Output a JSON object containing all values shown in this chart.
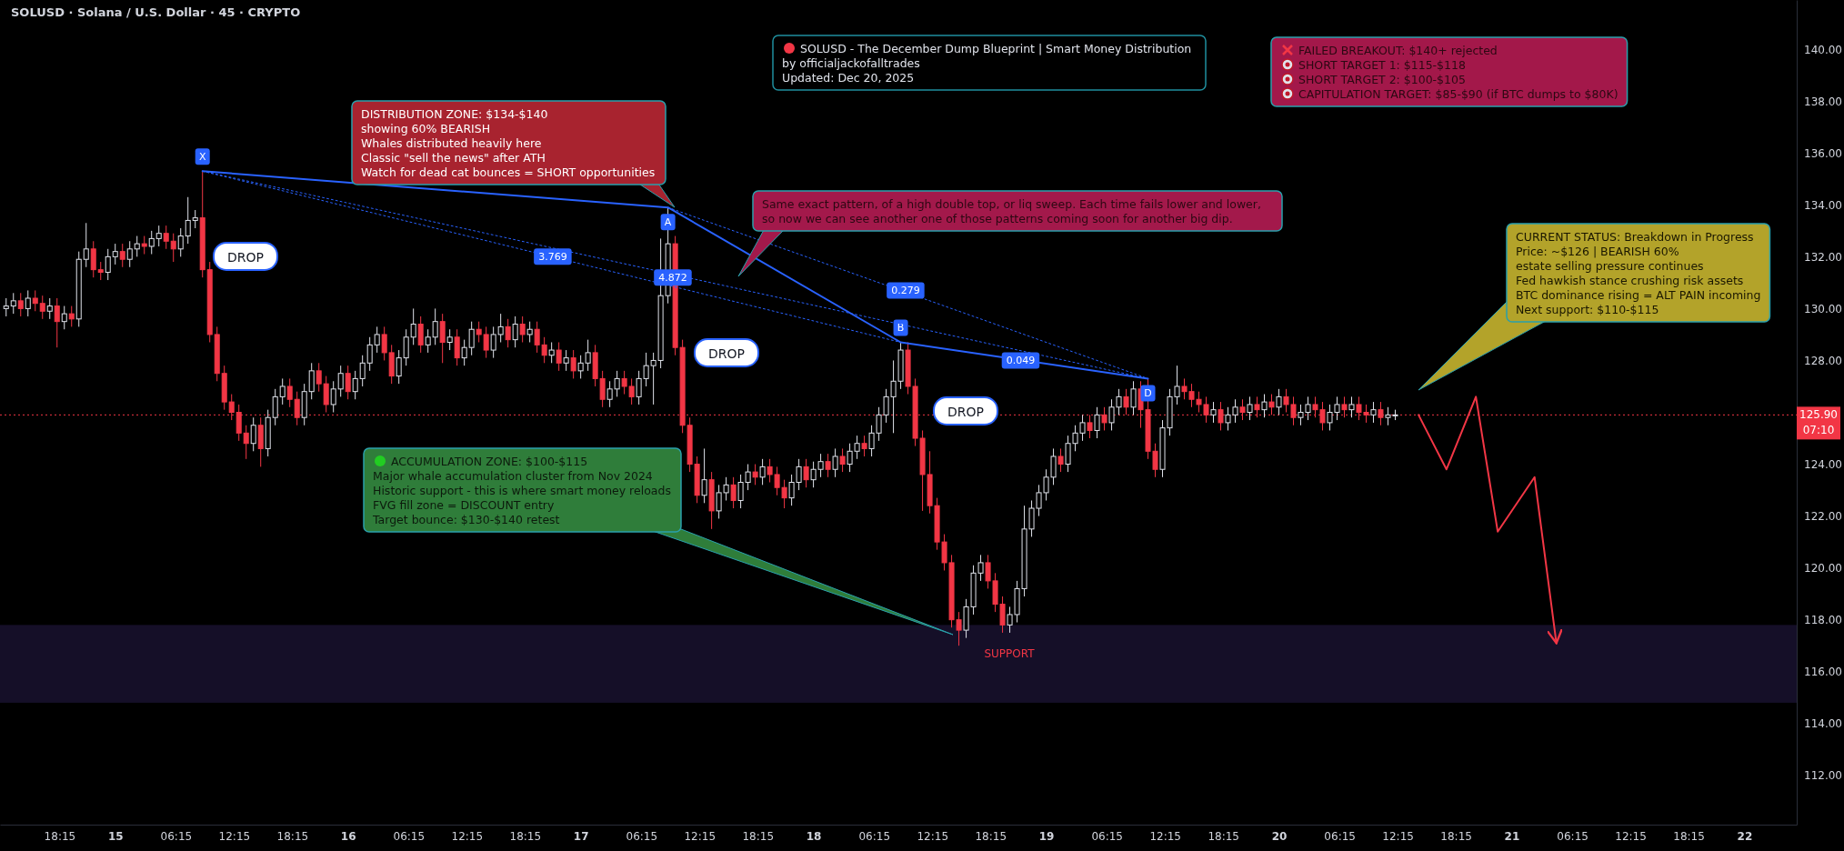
{
  "chart_data": {
    "type": "candlestick",
    "title": "SOLUSD · Solana / U.S. Dollar · 45 · CRYPTO",
    "xlim": [
      "2025-12-14T12:07",
      "2025-12-22T05:24"
    ],
    "ylim": [
      110.1,
      141.9
    ],
    "xticks": [
      {
        "value": "2025-12-14T18:15",
        "label": "18:15"
      },
      {
        "value": "2025-12-15T00:00",
        "label": "15"
      },
      {
        "value": "2025-12-15T06:15",
        "label": "06:15"
      },
      {
        "value": "2025-12-15T12:15",
        "label": "12:15"
      },
      {
        "value": "2025-12-15T18:15",
        "label": "18:15"
      },
      {
        "value": "2025-12-16T00:00",
        "label": "16"
      },
      {
        "value": "2025-12-16T06:15",
        "label": "06:15"
      },
      {
        "value": "2025-12-16T12:15",
        "label": "12:15"
      },
      {
        "value": "2025-12-16T18:15",
        "label": "18:15"
      },
      {
        "value": "2025-12-17T00:00",
        "label": "17"
      },
      {
        "value": "2025-12-17T06:15",
        "label": "06:15"
      },
      {
        "value": "2025-12-17T12:15",
        "label": "12:15"
      },
      {
        "value": "2025-12-17T18:15",
        "label": "18:15"
      },
      {
        "value": "2025-12-18T00:00",
        "label": "18"
      },
      {
        "value": "2025-12-18T06:15",
        "label": "06:15"
      },
      {
        "value": "2025-12-18T12:15",
        "label": "12:15"
      },
      {
        "value": "2025-12-18T18:15",
        "label": "18:15"
      },
      {
        "value": "2025-12-19T00:00",
        "label": "19"
      },
      {
        "value": "2025-12-19T06:15",
        "label": "06:15"
      },
      {
        "value": "2025-12-19T12:15",
        "label": "12:15"
      },
      {
        "value": "2025-12-19T18:15",
        "label": "18:15"
      },
      {
        "value": "2025-12-20T00:00",
        "label": "20"
      },
      {
        "value": "2025-12-20T06:15",
        "label": "06:15"
      },
      {
        "value": "2025-12-20T12:15",
        "label": "12:15"
      },
      {
        "value": "2025-12-20T18:15",
        "label": "18:15"
      },
      {
        "value": "2025-12-21T00:00",
        "label": "21"
      },
      {
        "value": "2025-12-21T06:15",
        "label": "06:15"
      },
      {
        "value": "2025-12-21T12:15",
        "label": "12:15"
      },
      {
        "value": "2025-12-21T18:15",
        "label": "18:15"
      },
      {
        "value": "2025-12-22T00:00",
        "label": "22"
      }
    ],
    "yticks": [
      {
        "value": 112,
        "label": "112.00"
      },
      {
        "value": 114,
        "label": "114.00"
      },
      {
        "value": 116,
        "label": "116.00"
      },
      {
        "value": 118,
        "label": "118.00"
      },
      {
        "value": 120,
        "label": "120.00"
      },
      {
        "value": 122,
        "label": "122.00"
      },
      {
        "value": 124,
        "label": "124.00"
      },
      {
        "value": 126,
        "label": null
      },
      {
        "value": 128,
        "label": "128.00"
      },
      {
        "value": 130,
        "label": "130.00"
      },
      {
        "value": 132,
        "label": "132.00"
      },
      {
        "value": 134,
        "label": "134.00"
      },
      {
        "value": 136,
        "label": "136.00"
      },
      {
        "value": 138,
        "label": "138.00"
      },
      {
        "value": 140,
        "label": "140.00"
      }
    ],
    "x": [
      "2025-12-14T12:45",
      "2025-12-14T13:30",
      "2025-12-14T14:15",
      "2025-12-14T15:00",
      "2025-12-14T15:45",
      "2025-12-14T16:30",
      "2025-12-14T17:15",
      "2025-12-14T18:00",
      "2025-12-14T18:45",
      "2025-12-14T19:30",
      "2025-12-14T20:15",
      "2025-12-14T21:00",
      "2025-12-14T21:45",
      "2025-12-14T22:30",
      "2025-12-14T23:15",
      "2025-12-15T00:00",
      "2025-12-15T00:45",
      "2025-12-15T01:30",
      "2025-12-15T02:15",
      "2025-12-15T03:00",
      "2025-12-15T03:45",
      "2025-12-15T04:30",
      "2025-12-15T05:15",
      "2025-12-15T06:00",
      "2025-12-15T06:45",
      "2025-12-15T07:30",
      "2025-12-15T08:15",
      "2025-12-15T09:00",
      "2025-12-15T09:45",
      "2025-12-15T10:30",
      "2025-12-15T11:15",
      "2025-12-15T12:00",
      "2025-12-15T12:45",
      "2025-12-15T13:30",
      "2025-12-15T14:15",
      "2025-12-15T15:00",
      "2025-12-15T15:45",
      "2025-12-15T16:30",
      "2025-12-15T17:15",
      "2025-12-15T18:00",
      "2025-12-15T18:45",
      "2025-12-15T19:30",
      "2025-12-15T20:15",
      "2025-12-15T21:00",
      "2025-12-15T21:45",
      "2025-12-15T22:30",
      "2025-12-15T23:15",
      "2025-12-16T00:00",
      "2025-12-16T00:45",
      "2025-12-16T01:30",
      "2025-12-16T02:15",
      "2025-12-16T03:00",
      "2025-12-16T03:45",
      "2025-12-16T04:30",
      "2025-12-16T05:15",
      "2025-12-16T06:00",
      "2025-12-16T06:45",
      "2025-12-16T07:30",
      "2025-12-16T08:15",
      "2025-12-16T09:00",
      "2025-12-16T09:45",
      "2025-12-16T10:30",
      "2025-12-16T11:15",
      "2025-12-16T12:00",
      "2025-12-16T12:45",
      "2025-12-16T13:30",
      "2025-12-16T14:15",
      "2025-12-16T15:00",
      "2025-12-16T15:45",
      "2025-12-16T16:30",
      "2025-12-16T17:15",
      "2025-12-16T18:00",
      "2025-12-16T18:45",
      "2025-12-16T19:30",
      "2025-12-16T20:15",
      "2025-12-16T21:00",
      "2025-12-16T21:45",
      "2025-12-16T22:30",
      "2025-12-16T23:15",
      "2025-12-17T00:00",
      "2025-12-17T00:45",
      "2025-12-17T01:30",
      "2025-12-17T02:15",
      "2025-12-17T03:00",
      "2025-12-17T03:45",
      "2025-12-17T04:30",
      "2025-12-17T05:15",
      "2025-12-17T06:00",
      "2025-12-17T06:45",
      "2025-12-17T07:30",
      "2025-12-17T08:15",
      "2025-12-17T09:00",
      "2025-12-17T09:45",
      "2025-12-17T10:30",
      "2025-12-17T11:15",
      "2025-12-17T12:00",
      "2025-12-17T12:45",
      "2025-12-17T13:30",
      "2025-12-17T14:15",
      "2025-12-17T15:00",
      "2025-12-17T15:45",
      "2025-12-17T16:30",
      "2025-12-17T17:15",
      "2025-12-17T18:00",
      "2025-12-17T18:45",
      "2025-12-17T19:30",
      "2025-12-17T20:15",
      "2025-12-17T21:00",
      "2025-12-17T21:45",
      "2025-12-17T22:30",
      "2025-12-17T23:15",
      "2025-12-18T00:00",
      "2025-12-18T00:45",
      "2025-12-18T01:30",
      "2025-12-18T02:15",
      "2025-12-18T03:00",
      "2025-12-18T03:45",
      "2025-12-18T04:30",
      "2025-12-18T05:15",
      "2025-12-18T06:00",
      "2025-12-18T06:45",
      "2025-12-18T07:30",
      "2025-12-18T08:15",
      "2025-12-18T09:00",
      "2025-12-18T09:45",
      "2025-12-18T10:30",
      "2025-12-18T11:15",
      "2025-12-18T12:00",
      "2025-12-18T12:45",
      "2025-12-18T13:30",
      "2025-12-18T14:15",
      "2025-12-18T15:00",
      "2025-12-18T15:45",
      "2025-12-18T16:30",
      "2025-12-18T17:15",
      "2025-12-18T18:00",
      "2025-12-18T18:45",
      "2025-12-18T19:30",
      "2025-12-18T20:15",
      "2025-12-18T21:00",
      "2025-12-18T21:45",
      "2025-12-18T22:30",
      "2025-12-18T23:15",
      "2025-12-19T00:00",
      "2025-12-19T00:45",
      "2025-12-19T01:30",
      "2025-12-19T02:15",
      "2025-12-19T03:00",
      "2025-12-19T03:45",
      "2025-12-19T04:30",
      "2025-12-19T05:15",
      "2025-12-19T06:00",
      "2025-12-19T06:45",
      "2025-12-19T07:30",
      "2025-12-19T08:15",
      "2025-12-19T09:00",
      "2025-12-19T09:45",
      "2025-12-19T10:30",
      "2025-12-19T11:15",
      "2025-12-19T12:00",
      "2025-12-19T12:45",
      "2025-12-19T13:30",
      "2025-12-19T14:15",
      "2025-12-19T15:00",
      "2025-12-19T15:45",
      "2025-12-19T16:30",
      "2025-12-19T17:15",
      "2025-12-19T18:00",
      "2025-12-19T18:45",
      "2025-12-19T19:30",
      "2025-12-19T20:15",
      "2025-12-19T21:00",
      "2025-12-19T21:45",
      "2025-12-19T22:30",
      "2025-12-19T23:15",
      "2025-12-20T00:00",
      "2025-12-20T00:45",
      "2025-12-20T01:30",
      "2025-12-20T02:15",
      "2025-12-20T03:00",
      "2025-12-20T03:45",
      "2025-12-20T04:30",
      "2025-12-20T05:15",
      "2025-12-20T06:00",
      "2025-12-20T06:45",
      "2025-12-20T07:30",
      "2025-12-20T08:15",
      "2025-12-20T09:00",
      "2025-12-20T09:45",
      "2025-12-20T10:30",
      "2025-12-20T11:15",
      "2025-12-20T12:00"
    ],
    "ohlc": [
      [
        130.0,
        130.4,
        129.7,
        130.1
      ],
      [
        130.1,
        130.6,
        129.8,
        130.3
      ],
      [
        130.3,
        130.6,
        129.7,
        130.0
      ],
      [
        130.0,
        130.7,
        129.7,
        130.4
      ],
      [
        130.4,
        130.7,
        129.9,
        130.2
      ],
      [
        130.2,
        130.5,
        129.6,
        129.9
      ],
      [
        129.9,
        130.4,
        129.6,
        130.1
      ],
      [
        130.1,
        130.4,
        128.5,
        129.5
      ],
      [
        129.5,
        130.1,
        129.2,
        129.8
      ],
      [
        129.8,
        130.1,
        129.3,
        129.6
      ],
      [
        129.6,
        132.2,
        129.3,
        131.9
      ],
      [
        131.9,
        133.3,
        131.6,
        132.3
      ],
      [
        132.3,
        132.6,
        131.2,
        131.5
      ],
      [
        131.5,
        131.8,
        131.1,
        131.4
      ],
      [
        131.4,
        132.3,
        131.1,
        132.0
      ],
      [
        132.0,
        132.5,
        131.7,
        132.2
      ],
      [
        132.2,
        132.5,
        131.6,
        131.9
      ],
      [
        131.9,
        132.6,
        131.6,
        132.3
      ],
      [
        132.3,
        132.8,
        132.0,
        132.5
      ],
      [
        132.5,
        132.8,
        132.1,
        132.4
      ],
      [
        132.4,
        133.0,
        132.1,
        132.7
      ],
      [
        132.7,
        133.2,
        132.4,
        132.9
      ],
      [
        132.9,
        133.2,
        132.3,
        132.6
      ],
      [
        132.6,
        132.9,
        131.8,
        132.3
      ],
      [
        132.3,
        133.1,
        132.0,
        132.8
      ],
      [
        132.8,
        134.3,
        132.5,
        133.4
      ],
      [
        133.4,
        133.8,
        133.1,
        133.5
      ],
      [
        133.5,
        135.3,
        131.2,
        131.5
      ],
      [
        131.5,
        131.8,
        128.7,
        129.0
      ],
      [
        129.0,
        129.3,
        127.2,
        127.5
      ],
      [
        127.5,
        127.8,
        126.1,
        126.4
      ],
      [
        126.4,
        126.7,
        125.7,
        126.0
      ],
      [
        126.0,
        126.3,
        124.9,
        125.2
      ],
      [
        125.2,
        125.5,
        124.2,
        124.8
      ],
      [
        124.8,
        125.8,
        124.5,
        125.5
      ],
      [
        125.5,
        125.8,
        123.9,
        124.6
      ],
      [
        124.6,
        126.1,
        124.3,
        125.8
      ],
      [
        125.8,
        126.9,
        125.5,
        126.6
      ],
      [
        126.6,
        127.3,
        126.3,
        127.0
      ],
      [
        127.0,
        127.3,
        126.2,
        126.5
      ],
      [
        126.5,
        126.8,
        125.5,
        125.8
      ],
      [
        125.8,
        127.1,
        125.5,
        126.8
      ],
      [
        126.8,
        127.9,
        126.5,
        127.6
      ],
      [
        127.6,
        127.9,
        126.8,
        127.1
      ],
      [
        127.1,
        127.4,
        126.0,
        126.3
      ],
      [
        126.3,
        127.2,
        126.0,
        126.9
      ],
      [
        126.9,
        127.8,
        126.6,
        127.5
      ],
      [
        127.5,
        127.8,
        126.5,
        126.8
      ],
      [
        126.8,
        127.6,
        126.5,
        127.3
      ],
      [
        127.3,
        128.2,
        127.0,
        127.9
      ],
      [
        127.9,
        128.9,
        127.6,
        128.6
      ],
      [
        128.6,
        129.3,
        128.3,
        129.0
      ],
      [
        129.0,
        129.3,
        128.0,
        128.3
      ],
      [
        128.3,
        128.6,
        127.1,
        127.4
      ],
      [
        127.4,
        128.4,
        127.1,
        128.1
      ],
      [
        128.1,
        129.2,
        127.8,
        128.9
      ],
      [
        128.9,
        130.0,
        128.6,
        129.4
      ],
      [
        129.4,
        129.7,
        128.3,
        128.6
      ],
      [
        128.6,
        129.2,
        128.3,
        128.9
      ],
      [
        128.9,
        130.0,
        128.6,
        129.5
      ],
      [
        129.5,
        129.8,
        127.9,
        128.7
      ],
      [
        128.7,
        129.2,
        128.4,
        128.9
      ],
      [
        128.9,
        129.2,
        127.8,
        128.1
      ],
      [
        128.1,
        128.8,
        127.8,
        128.5
      ],
      [
        128.5,
        129.5,
        128.2,
        129.2
      ],
      [
        129.2,
        129.5,
        128.7,
        129.0
      ],
      [
        129.0,
        129.3,
        128.1,
        128.4
      ],
      [
        128.4,
        129.3,
        128.1,
        129.0
      ],
      [
        129.0,
        129.8,
        128.7,
        129.3
      ],
      [
        129.3,
        129.6,
        128.5,
        128.8
      ],
      [
        128.8,
        129.7,
        128.5,
        129.4
      ],
      [
        129.4,
        129.7,
        128.7,
        129.0
      ],
      [
        129.0,
        129.5,
        128.7,
        129.2
      ],
      [
        129.2,
        129.5,
        128.3,
        128.6
      ],
      [
        128.6,
        128.9,
        127.9,
        128.2
      ],
      [
        128.2,
        128.7,
        127.9,
        128.4
      ],
      [
        128.4,
        128.7,
        127.6,
        127.9
      ],
      [
        127.9,
        128.4,
        127.6,
        128.1
      ],
      [
        128.1,
        128.4,
        127.3,
        127.6
      ],
      [
        127.6,
        128.2,
        127.3,
        127.9
      ],
      [
        127.9,
        128.8,
        127.6,
        128.3
      ],
      [
        128.3,
        128.6,
        127.0,
        127.3
      ],
      [
        127.3,
        127.6,
        126.2,
        126.5
      ],
      [
        126.5,
        127.2,
        126.2,
        126.9
      ],
      [
        126.9,
        127.6,
        126.6,
        127.3
      ],
      [
        127.3,
        127.6,
        126.7,
        127.0
      ],
      [
        127.0,
        127.3,
        126.3,
        126.6
      ],
      [
        126.6,
        127.6,
        126.3,
        127.3
      ],
      [
        127.3,
        128.3,
        127.0,
        127.8
      ],
      [
        127.8,
        128.3,
        126.3,
        128.0
      ],
      [
        128.0,
        132.7,
        127.7,
        130.5
      ],
      [
        130.5,
        133.9,
        130.2,
        132.5
      ],
      [
        132.5,
        132.8,
        128.2,
        128.5
      ],
      [
        128.5,
        128.8,
        125.2,
        125.5
      ],
      [
        125.5,
        125.8,
        123.7,
        124.0
      ],
      [
        124.0,
        124.3,
        122.5,
        122.8
      ],
      [
        122.8,
        124.6,
        122.5,
        123.4
      ],
      [
        123.4,
        123.7,
        121.5,
        122.2
      ],
      [
        122.2,
        123.2,
        121.9,
        122.9
      ],
      [
        122.9,
        123.5,
        122.6,
        123.2
      ],
      [
        123.2,
        123.5,
        122.3,
        122.6
      ],
      [
        122.6,
        123.6,
        122.3,
        123.3
      ],
      [
        123.3,
        124.0,
        123.0,
        123.7
      ],
      [
        123.7,
        124.0,
        123.2,
        123.5
      ],
      [
        123.5,
        124.2,
        123.2,
        123.9
      ],
      [
        123.9,
        124.2,
        123.3,
        123.6
      ],
      [
        123.6,
        123.9,
        122.8,
        123.1
      ],
      [
        123.1,
        123.4,
        122.3,
        122.7
      ],
      [
        122.7,
        123.6,
        122.4,
        123.3
      ],
      [
        123.3,
        124.2,
        123.0,
        123.9
      ],
      [
        123.9,
        124.2,
        123.1,
        123.4
      ],
      [
        123.4,
        124.1,
        123.1,
        123.8
      ],
      [
        123.8,
        124.4,
        123.5,
        124.1
      ],
      [
        124.1,
        124.4,
        123.5,
        123.8
      ],
      [
        123.8,
        124.6,
        123.5,
        124.3
      ],
      [
        124.3,
        124.6,
        123.7,
        124.0
      ],
      [
        124.0,
        124.8,
        123.7,
        124.5
      ],
      [
        124.5,
        125.1,
        124.2,
        124.8
      ],
      [
        124.8,
        125.1,
        124.3,
        124.6
      ],
      [
        124.6,
        125.5,
        124.3,
        125.2
      ],
      [
        125.2,
        126.2,
        124.9,
        125.9
      ],
      [
        125.9,
        126.9,
        125.6,
        126.6
      ],
      [
        126.6,
        128.0,
        125.2,
        127.2
      ],
      [
        127.2,
        128.7,
        126.9,
        128.4
      ],
      [
        128.4,
        128.7,
        126.7,
        127.0
      ],
      [
        127.0,
        127.3,
        124.7,
        125.0
      ],
      [
        125.0,
        125.3,
        122.2,
        123.6
      ],
      [
        123.6,
        124.5,
        122.1,
        122.4
      ],
      [
        122.4,
        122.7,
        120.7,
        121.0
      ],
      [
        121.0,
        121.3,
        119.9,
        120.2
      ],
      [
        120.2,
        120.5,
        117.7,
        118.0
      ],
      [
        118.0,
        118.3,
        117.0,
        117.6
      ],
      [
        117.6,
        118.8,
        117.3,
        118.5
      ],
      [
        118.5,
        120.1,
        118.2,
        119.8
      ],
      [
        119.8,
        120.5,
        119.5,
        120.2
      ],
      [
        120.2,
        120.5,
        119.2,
        119.5
      ],
      [
        119.5,
        119.8,
        118.3,
        118.6
      ],
      [
        118.6,
        118.9,
        117.5,
        117.8
      ],
      [
        117.8,
        118.5,
        117.5,
        118.2
      ],
      [
        118.2,
        119.5,
        117.9,
        119.2
      ],
      [
        119.2,
        122.4,
        118.9,
        121.5
      ],
      [
        121.5,
        122.6,
        121.2,
        122.3
      ],
      [
        122.3,
        123.2,
        122.0,
        122.9
      ],
      [
        122.9,
        123.8,
        122.6,
        123.5
      ],
      [
        123.5,
        124.6,
        123.2,
        124.3
      ],
      [
        124.3,
        124.6,
        123.7,
        124.0
      ],
      [
        124.0,
        125.1,
        123.7,
        124.8
      ],
      [
        124.8,
        125.5,
        124.5,
        125.2
      ],
      [
        125.2,
        125.9,
        124.9,
        125.6
      ],
      [
        125.6,
        125.9,
        125.0,
        125.3
      ],
      [
        125.3,
        126.2,
        125.0,
        125.9
      ],
      [
        125.9,
        126.2,
        125.3,
        125.6
      ],
      [
        125.6,
        126.5,
        125.3,
        126.2
      ],
      [
        126.2,
        126.9,
        125.9,
        126.6
      ],
      [
        126.6,
        126.9,
        125.9,
        126.2
      ],
      [
        126.2,
        127.2,
        125.9,
        126.9
      ],
      [
        126.9,
        127.2,
        125.4,
        126.1
      ],
      [
        126.1,
        127.3,
        124.2,
        124.5
      ],
      [
        124.5,
        124.8,
        123.5,
        123.8
      ],
      [
        123.8,
        125.7,
        123.5,
        125.4
      ],
      [
        125.4,
        126.9,
        125.1,
        126.6
      ],
      [
        126.6,
        127.8,
        126.3,
        127.0
      ],
      [
        127.0,
        127.3,
        126.5,
        126.8
      ],
      [
        126.8,
        127.1,
        126.2,
        126.5
      ],
      [
        126.5,
        126.8,
        126.0,
        126.3
      ],
      [
        126.3,
        126.6,
        125.6,
        125.9
      ],
      [
        125.9,
        126.4,
        125.6,
        126.1
      ],
      [
        126.1,
        126.4,
        125.3,
        125.6
      ],
      [
        125.6,
        126.2,
        125.3,
        125.9
      ],
      [
        125.9,
        126.5,
        125.6,
        126.2
      ],
      [
        126.2,
        126.5,
        125.7,
        126.0
      ],
      [
        126.0,
        126.6,
        125.7,
        126.3
      ],
      [
        126.3,
        126.6,
        125.8,
        126.1
      ],
      [
        126.1,
        126.7,
        125.8,
        126.4
      ],
      [
        126.4,
        126.7,
        125.9,
        126.2
      ],
      [
        126.2,
        126.9,
        125.9,
        126.6
      ],
      [
        126.6,
        126.9,
        126.0,
        126.3
      ],
      [
        126.3,
        126.6,
        125.5,
        125.8
      ],
      [
        125.8,
        126.3,
        125.5,
        126.0
      ],
      [
        126.0,
        126.6,
        125.7,
        126.3
      ],
      [
        126.3,
        126.6,
        125.8,
        126.1
      ],
      [
        126.1,
        126.4,
        125.3,
        125.6
      ],
      [
        125.6,
        126.3,
        125.3,
        126.0
      ],
      [
        126.0,
        126.6,
        125.7,
        126.3
      ],
      [
        126.3,
        126.6,
        125.8,
        126.1
      ],
      [
        126.1,
        126.6,
        125.8,
        126.3
      ],
      [
        126.3,
        126.6,
        125.7,
        126.0
      ],
      [
        126.0,
        126.3,
        125.6,
        125.9
      ],
      [
        125.9,
        126.4,
        125.6,
        126.1
      ],
      [
        126.1,
        126.4,
        125.5,
        125.8
      ],
      [
        125.8,
        126.2,
        125.5,
        125.9
      ],
      [
        125.9,
        126.1,
        125.7,
        125.9
      ]
    ],
    "series": [
      {
        "type": "line",
        "x": [
          "2025-12-15T09:00",
          "2025-12-17T09:00",
          "2025-12-18T09:00",
          "2025-12-19T10:30"
        ],
        "values": [
          135.3,
          133.9,
          128.7,
          127.3
        ],
        "color": "#2962ff",
        "line_style": "solid",
        "value_labels": [
          "X",
          "A",
          "B",
          "D"
        ]
      },
      {
        "type": "line",
        "x": [
          "2025-12-15T09:00",
          "2025-12-18T09:00"
        ],
        "values": [
          135.3,
          128.7
        ],
        "color": "#2962ff",
        "line_style": "dotted"
      },
      {
        "type": "line",
        "x": [
          "2025-12-15T09:00",
          "2025-12-19T10:30"
        ],
        "values": [
          135.3,
          127.3
        ],
        "color": "#2962ff",
        "line_style": "dotted"
      },
      {
        "type": "line",
        "x": [
          "2025-12-17T09:00",
          "2025-12-19T10:30"
        ],
        "values": [
          133.9,
          127.3
        ],
        "color": "#2962ff",
        "line_style": "dotted"
      },
      {
        "type": "line",
        "x": [
          "2025-12-20T14:24",
          "2025-12-20T17:17",
          "2025-12-20T20:19",
          "2025-12-20T22:34",
          "2025-12-21T02:22",
          "2025-12-21T04:37"
        ],
        "values": [
          125.9,
          123.8,
          126.6,
          121.4,
          123.5,
          117.1
        ],
        "color": "#f23645",
        "line_style": "solid"
      }
    ],
    "ref_lines": [
      {
        "axis": "y",
        "value": 125.9,
        "label": "125.90",
        "color": "#f23645",
        "line_style": "dotted"
      }
    ],
    "bands": [
      {
        "axis": "y",
        "from": 114.8,
        "to": 117.8,
        "label": "SUPPORT",
        "color": "#150f28"
      }
    ],
    "annotations": [
      "SOLUSD - The December Dump Blueprint | Smart Money Distribution\nby officialjackofalltrades\nUpdated: Dec 20, 2025",
      "DISTRIBUTION ZONE: $134-$140\nshowing 60% BEARISH\nWhales distributed heavily here\nClassic \"sell the news\" after ATH\nWatch for dead cat bounces = SHORT opportunities",
      "Same exact pattern, of a high double top, or liq sweep. Each time fails lower and lower,\nso now we can see another one of those patterns coming soon for another big dip.",
      "FAILED BREAKOUT: $140+ rejected\nSHORT TARGET 1: $115-$118\nSHORT TARGET 2: $100-$105\nCAPITULATION TARGET: $85-$90 (if BTC dumps to $80K)",
      "CURRENT STATUS: Breakdown in Progress\nPrice: ~$126 | BEARISH 60%\nestate selling pressure continues\nFed hawkish stance crushing risk assets\nBTC dominance rising = ALT PAIN incoming\nNext support: $110-$115",
      "ACCUMULATION ZONE: $100-$115\nMajor whale accumulation cluster from Nov 2024\nHistoric support - this is where smart money reloads\nFVG fill zone = DISCOUNT entry\nTarget bounce: $130-$140 retest",
      "07:10",
      "DROP",
      "DROP",
      "DROP",
      {
        "text": "3.769",
        "x": "2025-12-16T21:07",
        "y": 132.0
      },
      {
        "text": "4.872",
        "x": "2025-12-17T09:30",
        "y": 131.2
      },
      {
        "text": "0.279",
        "x": "2025-12-18T09:30",
        "y": 130.7
      },
      {
        "text": "0.049",
        "x": "2025-12-18T21:22",
        "y": 128.0
      }
    ]
  }
}
